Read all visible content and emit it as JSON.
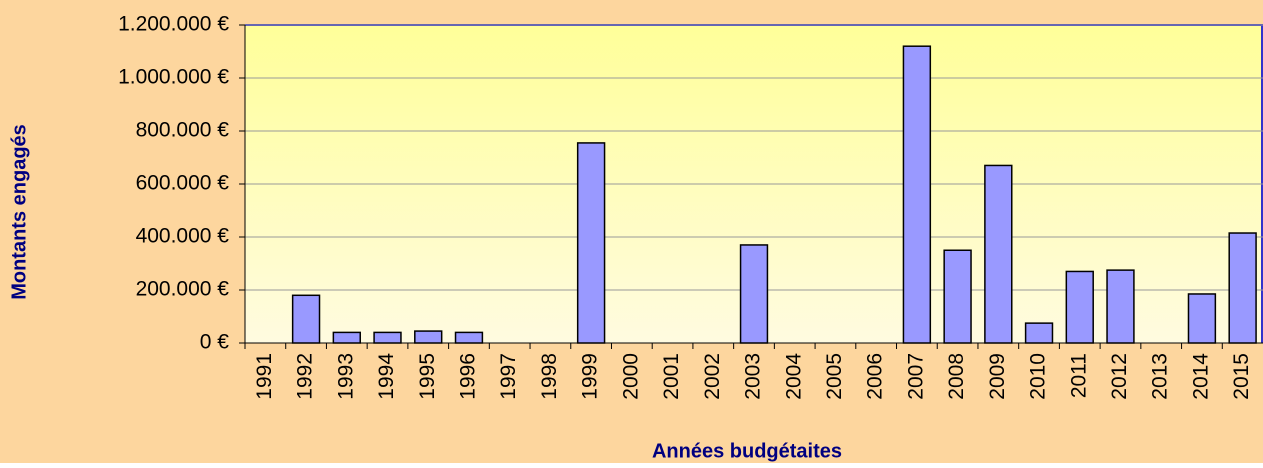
{
  "chart_data": {
    "type": "bar",
    "x_label": "Années budgétaites",
    "y_label": "Montants engagés",
    "categories": [
      "1991",
      "1992",
      "1993",
      "1994",
      "1995",
      "1996",
      "1997",
      "1998",
      "1999",
      "2000",
      "2001",
      "2002",
      "2003",
      "2004",
      "2005",
      "2006",
      "2007",
      "2008",
      "2009",
      "2010",
      "2011",
      "2012",
      "2013",
      "2014",
      "2015"
    ],
    "values": [
      0,
      180000,
      40000,
      40000,
      45000,
      40000,
      0,
      0,
      755000,
      0,
      0,
      0,
      370000,
      0,
      0,
      0,
      1120000,
      350000,
      670000,
      75000,
      270000,
      275000,
      0,
      185000,
      415000
    ],
    "color": "#9999ff",
    "ylim": [
      0,
      1200000
    ],
    "yticks": [
      {
        "value": 0,
        "label": "0 €"
      },
      {
        "value": 200000,
        "label": "200.000 €"
      },
      {
        "value": 400000,
        "label": "400.000 €"
      },
      {
        "value": 600000,
        "label": "600.000 €"
      },
      {
        "value": 800000,
        "label": "800.000 €"
      },
      {
        "value": 1000000,
        "label": "1.000.000 €"
      },
      {
        "value": 1200000,
        "label": "1.200.000 €"
      }
    ],
    "grid": true
  }
}
